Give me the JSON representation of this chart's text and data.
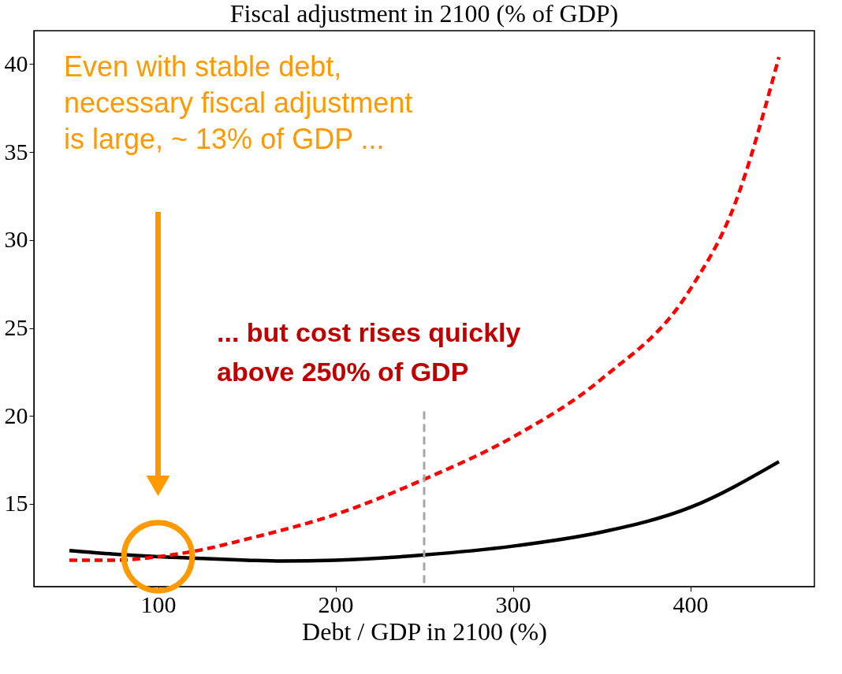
{
  "chart_data": {
    "type": "line",
    "title": "Fiscal adjustment in 2100 (% of GDP)",
    "xlabel": "Debt / GDP in 2100 (%)",
    "series": [
      {
        "color": "#000000",
        "line_style": "solid",
        "x": [
          50,
          75,
          100,
          125,
          150,
          170,
          200,
          250,
          300,
          350,
          400,
          450
        ],
        "values": [
          12.35,
          12.15,
          12.0,
          11.9,
          11.8,
          11.75,
          11.8,
          12.1,
          12.6,
          13.4,
          14.8,
          17.4
        ]
      },
      {
        "color": "#ff0000",
        "line_style": "dashed",
        "x": [
          50,
          75,
          100,
          125,
          150,
          200,
          250,
          300,
          350,
          400,
          425,
          450
        ],
        "values": [
          11.8,
          11.8,
          12.0,
          12.4,
          13.0,
          14.4,
          16.4,
          18.8,
          22.1,
          27.2,
          32.0,
          40.4
        ]
      }
    ],
    "xlim": [
      30,
      470
    ],
    "ylim": [
      10.3,
      41.9
    ],
    "xticks": [
      100,
      200,
      300,
      400
    ],
    "yticks": [
      15,
      20,
      25,
      30,
      35,
      40
    ],
    "ref_lines": [
      {
        "axis": "x",
        "value": 250,
        "color": "#a6a6a6",
        "line_style": "dashed"
      }
    ],
    "annotations": [
      "Even with stable debt,\nnecessary fiscal adjustment\nis large, ~ 13% of GDP ...",
      "... but cost rises quickly\nabove 250% of GDP"
    ],
    "grid": false,
    "legend": false,
    "marker": "none"
  }
}
